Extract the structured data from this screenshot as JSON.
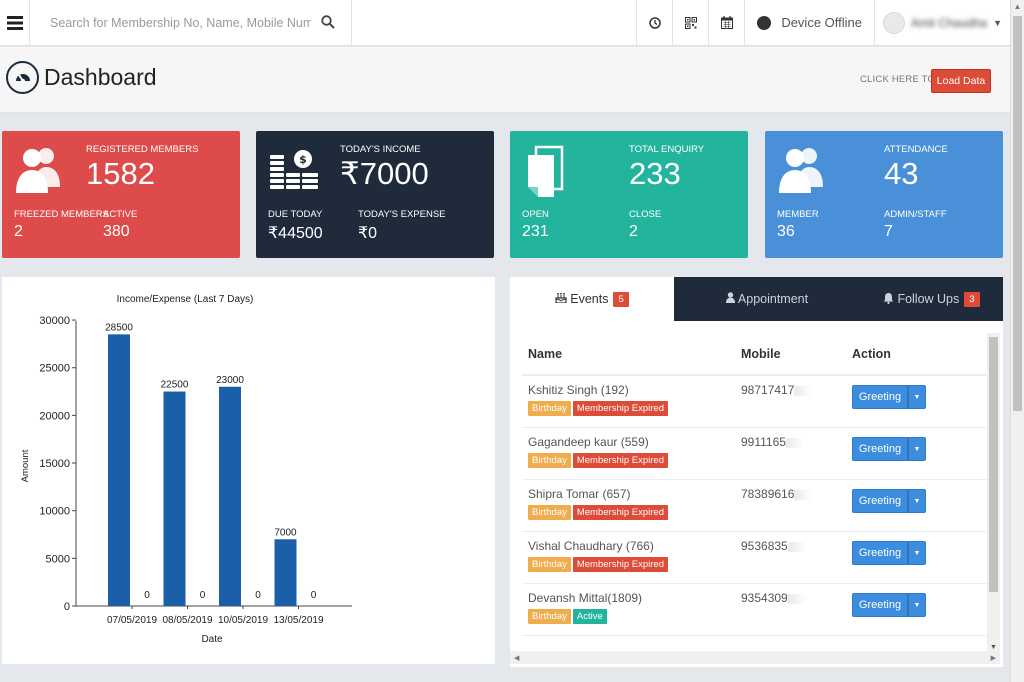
{
  "topbar": {
    "search_placeholder": "Search for Membership No, Name, Mobile Number",
    "device_status": "Device Offline",
    "user_name": "Amit Chaudhary"
  },
  "header": {
    "title": "Dashboard",
    "click_here_text": "CLICK HERE TO",
    "load_button": "Load Data"
  },
  "cards": [
    {
      "main_label": "REGISTERED MEMBERS",
      "main_value": "1582",
      "sub1_label": "FREEZED MEMBERS",
      "sub1_value": "2",
      "sub2_label": "ACTIVE",
      "sub2_value": "380",
      "color": "#dd4b4b",
      "icon": "users-icon"
    },
    {
      "main_label": "TODAY'S INCOME",
      "main_value": "₹7000",
      "sub1_label": "DUE TODAY",
      "sub1_value": "₹44500",
      "sub2_label": "TODAY'S EXPENSE",
      "sub2_value": "₹0",
      "color": "#1f2a3a",
      "icon": "money-icon"
    },
    {
      "main_label": "TOTAL ENQUIRY",
      "main_value": "233",
      "sub1_label": "OPEN",
      "sub1_value": "231",
      "sub2_label": "CLOSE",
      "sub2_value": "2",
      "color": "#22b49d",
      "icon": "files-icon"
    },
    {
      "main_label": "ATTENDANCE",
      "main_value": "43",
      "sub1_label": "MEMBER",
      "sub1_value": "36",
      "sub2_label": "ADMIN/STAFF",
      "sub2_value": "7",
      "color": "#4a90d9",
      "icon": "users-icon"
    }
  ],
  "chart_data": {
    "type": "bar",
    "title": "Income/Expense (Last 7 Days)",
    "xlabel": "Date",
    "ylabel": "Amount",
    "categories": [
      "07/05/2019",
      "08/05/2019",
      "10/05/2019",
      "13/05/2019"
    ],
    "series": [
      {
        "values": [
          28500,
          22500,
          23000,
          7000
        ],
        "color": "#1a5fa8"
      },
      {
        "values": [
          0,
          0,
          0,
          0
        ],
        "color": "#1a5fa8"
      }
    ],
    "ylim": [
      0,
      32000
    ],
    "yticks": [
      0,
      5000,
      10000,
      15000,
      20000,
      25000,
      30000
    ],
    "ytick_labels": [
      "0",
      "5000",
      "10000",
      "15000",
      "20000",
      "25000",
      "30000"
    ],
    "grid": false
  },
  "tabs": [
    {
      "label": "Events",
      "badge": "5",
      "active": true,
      "icon": "birthday-cake-icon"
    },
    {
      "label": "Appointment",
      "badge": "",
      "active": false,
      "icon": "user-icon"
    },
    {
      "label": "Follow Ups",
      "badge": "3",
      "active": false,
      "icon": "bell-icon"
    }
  ],
  "events_table": {
    "headers": {
      "name": "Name",
      "mobile": "Mobile",
      "action": "Action"
    },
    "rows": [
      {
        "name": "Kshitiz Singh (192)",
        "mobile": "98717417",
        "tags": [
          {
            "text": "Birthday",
            "kind": "bday"
          },
          {
            "text": "Membership Expired",
            "kind": "exp"
          }
        ],
        "action": "Greeting"
      },
      {
        "name": "Gagandeep kaur (559)",
        "mobile": "9911165",
        "tags": [
          {
            "text": "Birthday",
            "kind": "bday"
          },
          {
            "text": "Membership Expired",
            "kind": "exp"
          }
        ],
        "action": "Greeting"
      },
      {
        "name": "Shipra Tomar (657)",
        "mobile": "78389616",
        "tags": [
          {
            "text": "Birthday",
            "kind": "bday"
          },
          {
            "text": "Membership Expired",
            "kind": "exp"
          }
        ],
        "action": "Greeting"
      },
      {
        "name": "Vishal Chaudhary (766)",
        "mobile": "9536835",
        "tags": [
          {
            "text": "Birthday",
            "kind": "bday"
          },
          {
            "text": "Membership Expired",
            "kind": "exp"
          }
        ],
        "action": "Greeting"
      },
      {
        "name": "Devansh Mittal(1809)",
        "mobile": "9354309",
        "tags": [
          {
            "text": "Birthday",
            "kind": "bday"
          },
          {
            "text": "Active",
            "kind": "act"
          }
        ],
        "action": "Greeting"
      }
    ]
  }
}
